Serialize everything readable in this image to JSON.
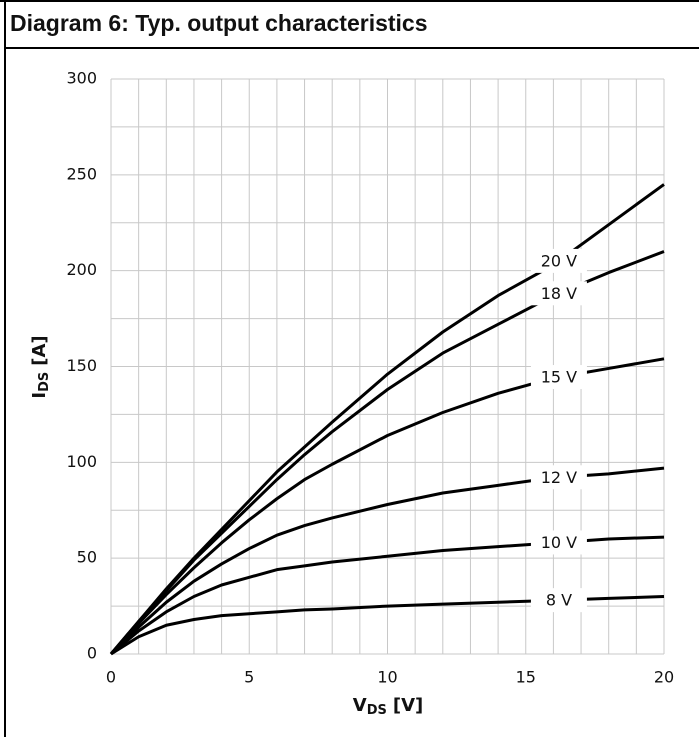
{
  "chart_data": {
    "type": "line",
    "title": "Diagram 6: Typ. output characteristics",
    "xlabel": {
      "main": "V",
      "sub": "DS",
      "unit": "[V]"
    },
    "ylabel": {
      "main": "I",
      "sub": "DS",
      "unit": "[A]"
    },
    "x": [
      0,
      1,
      2,
      3,
      4,
      5,
      6,
      7,
      8,
      10,
      12,
      14,
      16,
      18,
      20
    ],
    "series": [
      {
        "name": "20 V",
        "color": "#000000",
        "values": [
          0,
          17,
          34,
          50,
          65,
          80,
          95,
          108,
          121,
          146,
          168,
          187,
          203,
          224,
          245
        ]
      },
      {
        "name": "18 V",
        "color": "#000000",
        "values": [
          0,
          17,
          33,
          49,
          63,
          77,
          91,
          104,
          116,
          138,
          157,
          172,
          187,
          199,
          210
        ]
      },
      {
        "name": "15 V",
        "color": "#000000",
        "values": [
          0,
          16,
          31,
          45,
          58,
          70,
          81,
          91,
          99,
          114,
          126,
          136,
          144,
          149,
          154
        ]
      },
      {
        "name": "12 V",
        "color": "#000000",
        "values": [
          0,
          14,
          27,
          38,
          47,
          55,
          62,
          67,
          71,
          78,
          84,
          88,
          92,
          94,
          97
        ]
      },
      {
        "name": "10 V",
        "color": "#000000",
        "values": [
          0,
          12,
          22,
          30,
          36,
          40,
          44,
          46,
          48,
          51,
          54,
          56,
          58,
          60,
          61
        ]
      },
      {
        "name": "8 V",
        "color": "#000000",
        "values": [
          0,
          9,
          15,
          18,
          20,
          21,
          22,
          23,
          23.5,
          25,
          26,
          27,
          28,
          29,
          30
        ]
      }
    ],
    "xlim": [
      0,
      20
    ],
    "xticks": [
      0,
      5,
      10,
      15,
      20
    ],
    "ylim": [
      0,
      300
    ],
    "yticks": [
      0,
      50,
      100,
      150,
      200,
      250,
      300
    ],
    "grid": true
  }
}
